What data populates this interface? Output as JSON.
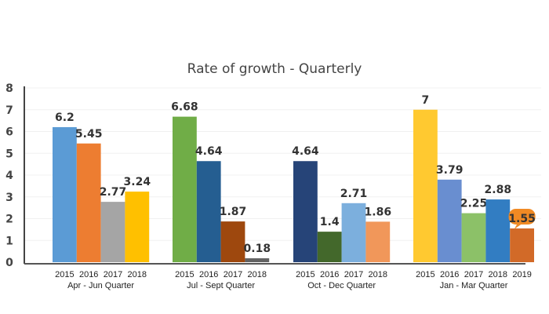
{
  "chart_data": {
    "type": "bar",
    "title": "Rate of growth - Quarterly",
    "xlabel": "",
    "ylabel": "",
    "ylim": [
      0,
      8
    ],
    "yticks": [
      "0",
      "1",
      "2",
      "3",
      "4",
      "5",
      "6",
      "7",
      "8"
    ],
    "grid": true,
    "legend": "none",
    "groups": [
      {
        "label": "Apr - Jun Quarter",
        "bars": [
          {
            "year": "2015",
            "value": 6.2,
            "label": "6.2",
            "color": "#5b9bd5"
          },
          {
            "year": "2016",
            "value": 5.45,
            "label": "5.45",
            "color": "#ed7d31"
          },
          {
            "year": "2017",
            "value": 2.77,
            "label": "2.77",
            "color": "#a5a5a5"
          },
          {
            "year": "2018",
            "value": 3.24,
            "label": "3.24",
            "color": "#ffc000"
          }
        ]
      },
      {
        "label": "Jul - Sept Quarter",
        "bars": [
          {
            "year": "2015",
            "value": 6.68,
            "label": "6.68",
            "color": "#70ad47"
          },
          {
            "year": "2016",
            "value": 4.64,
            "label": "4.64",
            "color": "#255e91"
          },
          {
            "year": "2017",
            "value": 1.87,
            "label": "1.87",
            "color": "#9e480e"
          },
          {
            "year": "2018",
            "value": 0.18,
            "label": "0.18",
            "color": "#636363"
          }
        ]
      },
      {
        "label": "Oct - Dec Quarter",
        "bars": [
          {
            "year": "2015",
            "value": 4.64,
            "label": "4.64",
            "color": "#264478"
          },
          {
            "year": "2016",
            "value": 1.4,
            "label": "1.4",
            "color": "#43682b"
          },
          {
            "year": "2017",
            "value": 2.71,
            "label": "2.71",
            "color": "#7cafdd"
          },
          {
            "year": "2018",
            "value": 1.86,
            "label": "1.86",
            "color": "#f1975a"
          }
        ]
      },
      {
        "label": "Jan - Mar Quarter",
        "bars": [
          {
            "year": "2015",
            "value": 7,
            "label": "7",
            "color": "#ffc930"
          },
          {
            "year": "2016",
            "value": 3.79,
            "label": "3.79",
            "color": "#698ed0"
          },
          {
            "year": "2017",
            "value": 2.25,
            "label": "2.25",
            "color": "#8cc168"
          },
          {
            "year": "2018",
            "value": 2.88,
            "label": "2.88",
            "color": "#327dc2"
          },
          {
            "year": "2019",
            "value": 1.55,
            "label": "1.55",
            "color": "#d26a28",
            "highlight": "#f08a24"
          }
        ]
      }
    ]
  }
}
